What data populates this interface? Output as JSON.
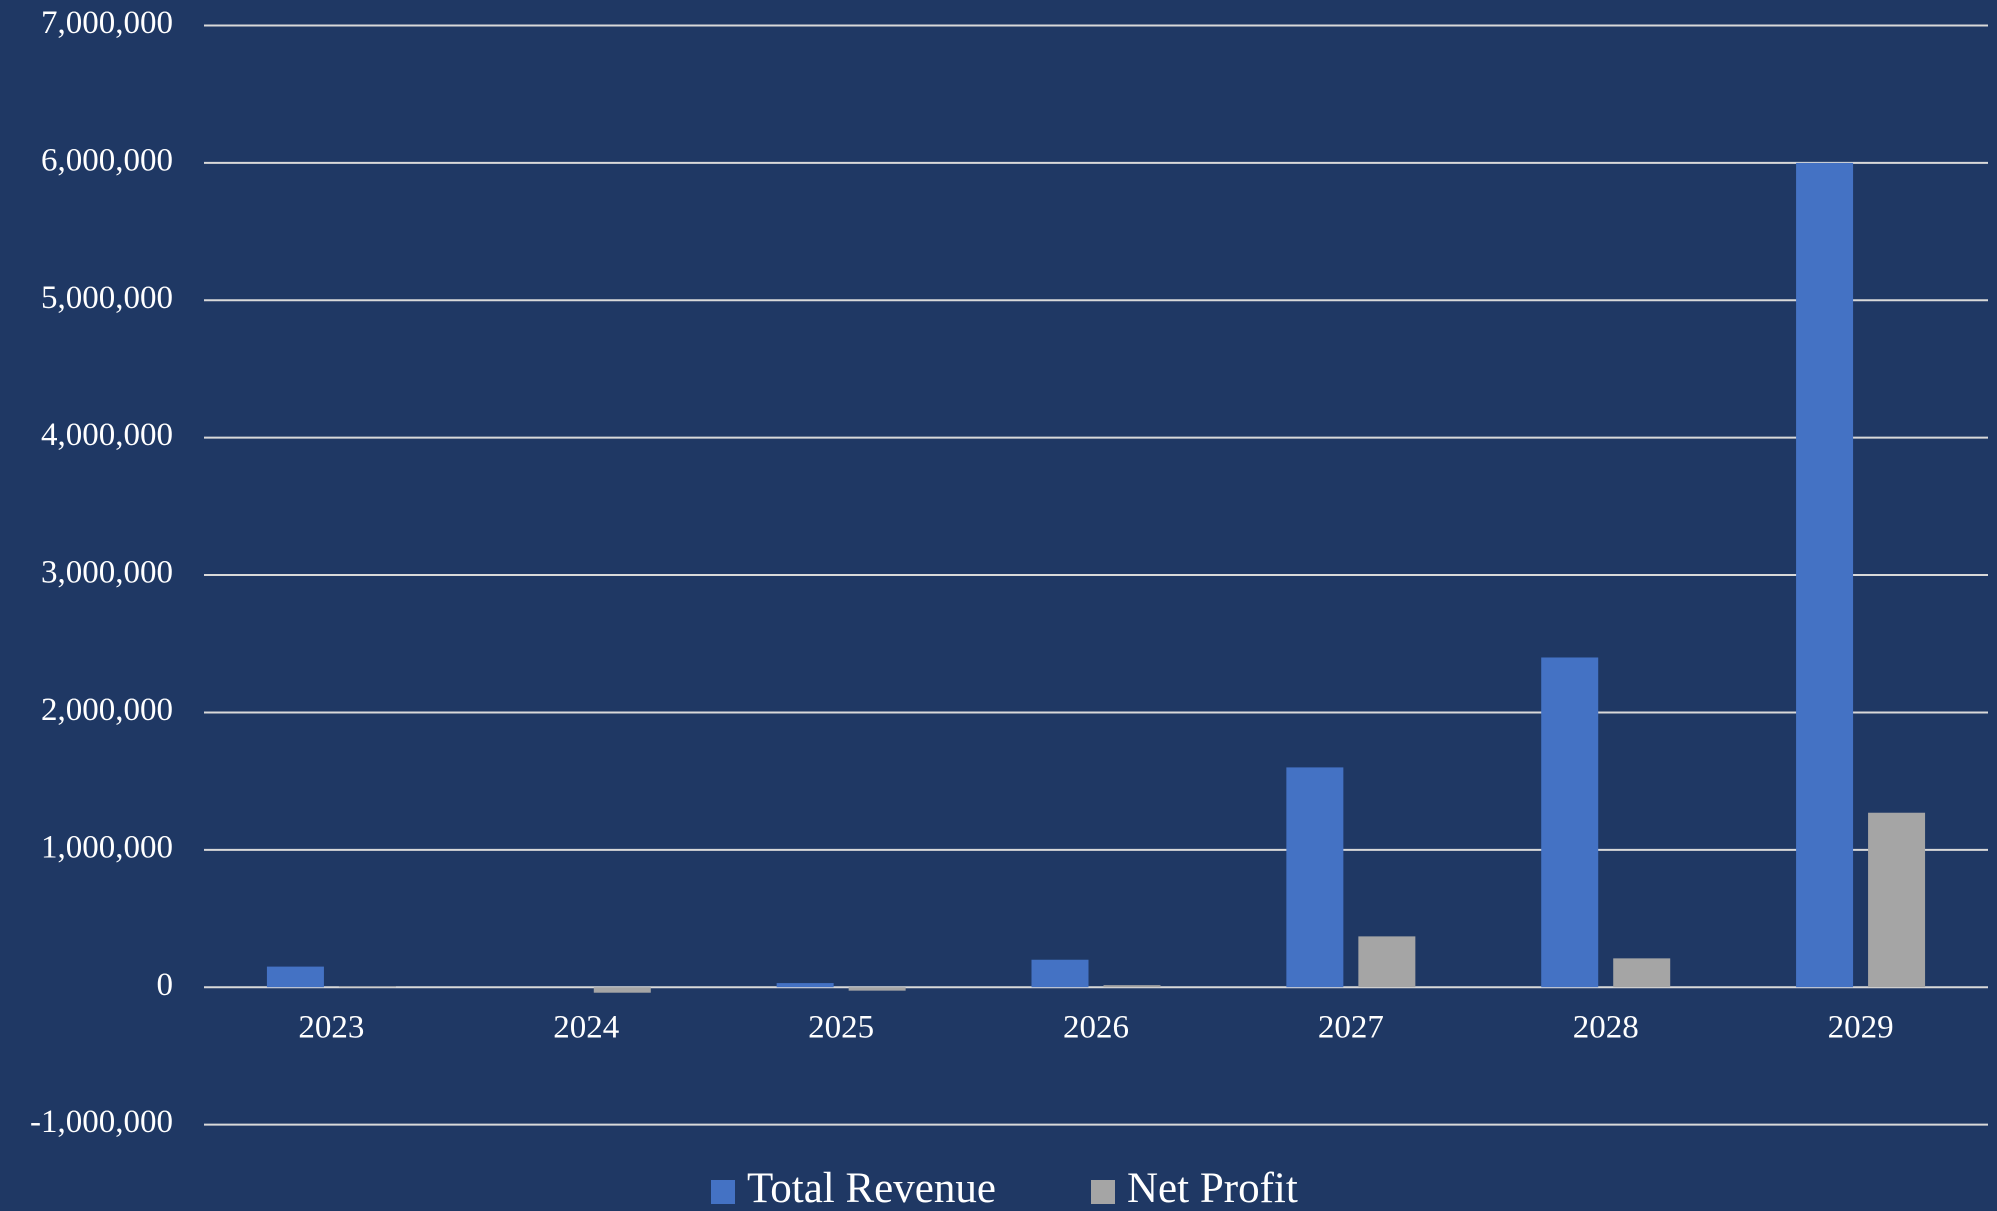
{
  "chart_data": {
    "type": "bar",
    "categories": [
      "2023",
      "2024",
      "2025",
      "2026",
      "2027",
      "2028",
      "2029"
    ],
    "series": [
      {
        "name": "Total Revenue",
        "color": "#4472c4",
        "values": [
          150000,
          0,
          30000,
          200000,
          1600000,
          2400000,
          6000000
        ]
      },
      {
        "name": "Net Profit",
        "color": "#a5a5a5",
        "values": [
          5000,
          -40000,
          -25000,
          15000,
          370000,
          210000,
          1270000
        ]
      }
    ],
    "ylim": [
      -1000000,
      7000000
    ],
    "yticks": [
      {
        "value": -1000000,
        "label": "-1,000,000"
      },
      0,
      {
        "value": 1000000,
        "label": "1,000,000"
      },
      {
        "value": 2000000,
        "label": "2,000,000"
      },
      {
        "value": 3000000,
        "label": "3,000,000"
      },
      {
        "value": 4000000,
        "label": "4,000,000"
      },
      {
        "value": 5000000,
        "label": "5,000,000"
      },
      {
        "value": 6000000,
        "label": "6,000,000"
      },
      {
        "value": 7000000,
        "label": "7,000,000"
      }
    ],
    "grid": true,
    "legend": "bottom"
  }
}
